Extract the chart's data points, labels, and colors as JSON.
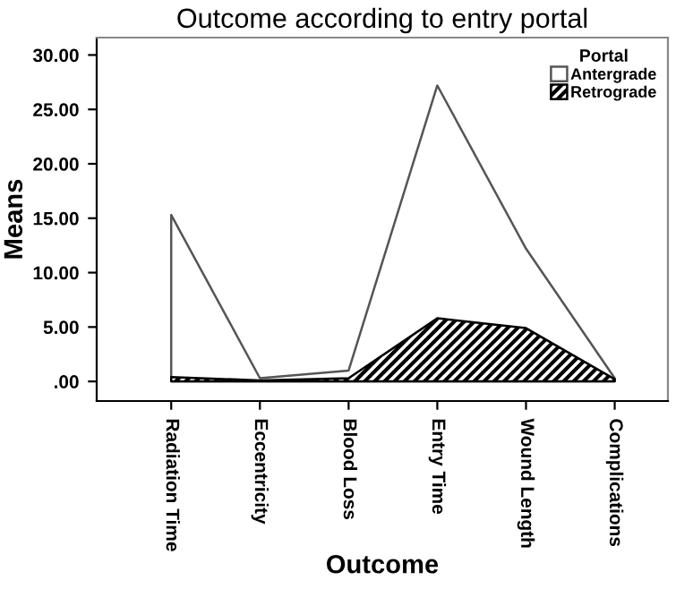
{
  "chart_data": {
    "type": "area",
    "title": "Outcome according to entry portal",
    "xlabel": "Outcome",
    "ylabel": "Means",
    "legend_title": "Portal",
    "legend": "top right",
    "grid": false,
    "categories": [
      "Radiation Time",
      "Eccentricity",
      "Blood Loss",
      "Entry Time",
      "Wound Length",
      "Complications"
    ],
    "series": [
      {
        "name": "Antergrade",
        "color": "#ffffff",
        "values": [
          15.3,
          0.3,
          1.0,
          27.2,
          12.2,
          0.3
        ]
      },
      {
        "name": "Retrograde",
        "color": "#000000",
        "values": [
          0.4,
          0.1,
          0.3,
          5.8,
          4.9,
          0.2
        ]
      }
    ],
    "ylim": [
      -1.8,
      31.6
    ],
    "yticks": [
      {
        "value": 0,
        "label": ".00"
      },
      {
        "value": 5,
        "label": "5.00"
      },
      {
        "value": 10,
        "label": "10.00"
      },
      {
        "value": 15,
        "label": "15.00"
      },
      {
        "value": 20,
        "label": "20.00"
      },
      {
        "value": 25,
        "label": "25.00"
      },
      {
        "value": 30,
        "label": "30.00"
      }
    ]
  }
}
